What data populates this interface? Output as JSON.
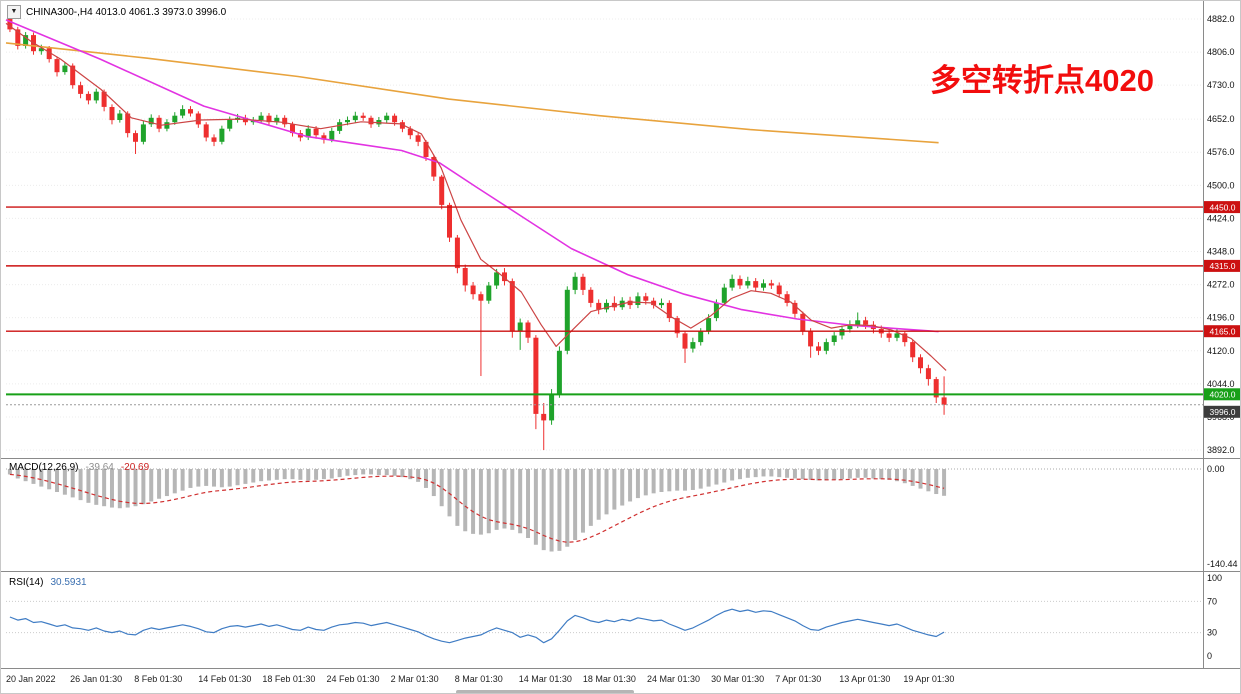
{
  "window": {
    "symbol_dropdown_icon": "▼",
    "title": "CHINA300-,H4 4013.0 4061.3 3973.0 3996.0"
  },
  "annotation": {
    "text": "多空转折点4020",
    "color": "#f20d0d"
  },
  "indicator_labels": {
    "macd_name": "MACD(12,26,9)",
    "macd_value": "-39.64",
    "macd_signal": "-20.69",
    "rsi_name": "RSI(14)",
    "rsi_value": "30.5931"
  },
  "chart_data": {
    "type": "candlestick",
    "symbol": "CHINA300-",
    "timeframe": "H4",
    "quote": {
      "open": 4013.0,
      "high": 4061.3,
      "low": 3973.0,
      "close": 3996.0
    },
    "up_color": "#1fa32b",
    "down_color": "#ee2f2f",
    "y_axis_ticks": [
      "4882.0",
      "4806.0",
      "4730.0",
      "4652.0",
      "4576.0",
      "4500.0",
      "4424.0",
      "4348.0",
      "4272.0",
      "4196.0",
      "4120.0",
      "4044.0",
      "3968.0",
      "3892.0"
    ],
    "x_axis_labels": [
      "20 Jan 2022",
      "26 Jan 01:30",
      "8 Feb 01:30",
      "14 Feb 01:30",
      "18 Feb 01:30",
      "24 Feb 01:30",
      "2 Mar 01:30",
      "8 Mar 01:30",
      "14 Mar 01:30",
      "18 Mar 01:30",
      "24 Mar 01:30",
      "30 Mar 01:30",
      "7 Apr 01:30",
      "13 Apr 01:30",
      "19 Apr 01:30"
    ],
    "candles": [
      [
        4882,
        4890,
        4852,
        4858
      ],
      [
        4858,
        4864,
        4812,
        4820
      ],
      [
        4820,
        4852,
        4814,
        4845
      ],
      [
        4845,
        4851,
        4800,
        4808
      ],
      [
        4808,
        4823,
        4800,
        4815
      ],
      [
        4815,
        4820,
        4782,
        4790
      ],
      [
        4790,
        4796,
        4750,
        4760
      ],
      [
        4760,
        4783,
        4754,
        4775
      ],
      [
        4775,
        4780,
        4722,
        4730
      ],
      [
        4730,
        4738,
        4700,
        4710
      ],
      [
        4710,
        4716,
        4686,
        4695
      ],
      [
        4695,
        4722,
        4688,
        4715
      ],
      [
        4715,
        4720,
        4670,
        4680
      ],
      [
        4680,
        4686,
        4640,
        4650
      ],
      [
        4650,
        4673,
        4644,
        4665
      ],
      [
        4665,
        4670,
        4610,
        4620
      ],
      [
        4620,
        4626,
        4572,
        4600
      ],
      [
        4600,
        4648,
        4594,
        4640
      ],
      [
        4640,
        4663,
        4634,
        4655
      ],
      [
        4655,
        4661,
        4622,
        4630
      ],
      [
        4630,
        4652,
        4624,
        4645
      ],
      [
        4645,
        4668,
        4639,
        4660
      ],
      [
        4660,
        4684,
        4654,
        4675
      ],
      [
        4675,
        4682,
        4658,
        4665
      ],
      [
        4665,
        4670,
        4632,
        4640
      ],
      [
        4640,
        4645,
        4601,
        4610
      ],
      [
        4610,
        4617,
        4590,
        4600
      ],
      [
        4600,
        4637,
        4594,
        4630
      ],
      [
        4630,
        4658,
        4624,
        4650
      ],
      [
        4650,
        4664,
        4644,
        4655
      ],
      [
        4655,
        4662,
        4638,
        4645
      ],
      [
        4645,
        4657,
        4639,
        4650
      ],
      [
        4650,
        4668,
        4644,
        4660
      ],
      [
        4660,
        4666,
        4638,
        4645
      ],
      [
        4645,
        4662,
        4639,
        4655
      ],
      [
        4655,
        4661,
        4633,
        4640
      ],
      [
        4640,
        4646,
        4612,
        4620
      ],
      [
        4620,
        4627,
        4601,
        4610
      ],
      [
        4610,
        4638,
        4604,
        4630
      ],
      [
        4630,
        4636,
        4607,
        4615
      ],
      [
        4615,
        4621,
        4596,
        4605
      ],
      [
        4605,
        4632,
        4599,
        4625
      ],
      [
        4625,
        4652,
        4618,
        4645
      ],
      [
        4645,
        4658,
        4638,
        4650
      ],
      [
        4650,
        4669,
        4644,
        4660
      ],
      [
        4660,
        4667,
        4648,
        4655
      ],
      [
        4655,
        4660,
        4632,
        4640
      ],
      [
        4640,
        4657,
        4634,
        4650
      ],
      [
        4650,
        4667,
        4643,
        4660
      ],
      [
        4660,
        4665,
        4637,
        4645
      ],
      [
        4645,
        4650,
        4622,
        4630
      ],
      [
        4630,
        4636,
        4606,
        4615
      ],
      [
        4615,
        4620,
        4590,
        4600
      ],
      [
        4600,
        4604,
        4556,
        4565
      ],
      [
        4565,
        4570,
        4510,
        4520
      ],
      [
        4520,
        4524,
        4445,
        4455
      ],
      [
        4455,
        4460,
        4370,
        4380
      ],
      [
        4380,
        4386,
        4298,
        4310
      ],
      [
        4310,
        4318,
        4256,
        4270
      ],
      [
        4270,
        4278,
        4238,
        4250
      ],
      [
        4250,
        4256,
        4062,
        4235
      ],
      [
        4235,
        4278,
        4228,
        4270
      ],
      [
        4270,
        4308,
        4262,
        4300
      ],
      [
        4300,
        4310,
        4270,
        4280
      ],
      [
        4280,
        4286,
        4150,
        4165
      ],
      [
        4165,
        4194,
        4122,
        4185
      ],
      [
        4185,
        4190,
        4138,
        4150
      ],
      [
        4150,
        4156,
        3940,
        3975
      ],
      [
        3975,
        4000,
        3892,
        3960
      ],
      [
        3960,
        4032,
        3950,
        4020
      ],
      [
        4020,
        4130,
        4012,
        4120
      ],
      [
        4120,
        4268,
        4112,
        4260
      ],
      [
        4260,
        4300,
        4250,
        4290
      ],
      [
        4290,
        4297,
        4248,
        4260
      ],
      [
        4260,
        4266,
        4220,
        4230
      ],
      [
        4230,
        4238,
        4204,
        4215
      ],
      [
        4215,
        4238,
        4208,
        4230
      ],
      [
        4230,
        4245,
        4212,
        4220
      ],
      [
        4220,
        4243,
        4214,
        4235
      ],
      [
        4235,
        4244,
        4216,
        4225
      ],
      [
        4225,
        4254,
        4218,
        4245
      ],
      [
        4245,
        4253,
        4226,
        4235
      ],
      [
        4235,
        4242,
        4217,
        4225
      ],
      [
        4225,
        4240,
        4218,
        4230
      ],
      [
        4230,
        4236,
        4186,
        4195
      ],
      [
        4195,
        4200,
        4150,
        4160
      ],
      [
        4160,
        4166,
        4092,
        4125
      ],
      [
        4125,
        4150,
        4116,
        4140
      ],
      [
        4140,
        4172,
        4132,
        4165
      ],
      [
        4165,
        4204,
        4158,
        4195
      ],
      [
        4195,
        4238,
        4188,
        4230
      ],
      [
        4230,
        4274,
        4224,
        4265
      ],
      [
        4265,
        4295,
        4258,
        4285
      ],
      [
        4285,
        4293,
        4262,
        4270
      ],
      [
        4270,
        4290,
        4263,
        4280
      ],
      [
        4280,
        4287,
        4257,
        4265
      ],
      [
        4265,
        4284,
        4258,
        4275
      ],
      [
        4275,
        4283,
        4262,
        4270
      ],
      [
        4270,
        4277,
        4242,
        4250
      ],
      [
        4250,
        4257,
        4222,
        4230
      ],
      [
        4230,
        4236,
        4196,
        4205
      ],
      [
        4205,
        4210,
        4156,
        4165
      ],
      [
        4165,
        4172,
        4104,
        4130
      ],
      [
        4130,
        4140,
        4110,
        4120
      ],
      [
        4120,
        4148,
        4112,
        4140
      ],
      [
        4140,
        4163,
        4132,
        4155
      ],
      [
        4155,
        4178,
        4146,
        4170
      ],
      [
        4170,
        4190,
        4162,
        4180
      ],
      [
        4180,
        4208,
        4172,
        4190
      ],
      [
        4190,
        4198,
        4170,
        4180
      ],
      [
        4180,
        4188,
        4160,
        4170
      ],
      [
        4170,
        4178,
        4150,
        4160
      ],
      [
        4160,
        4168,
        4140,
        4150
      ],
      [
        4150,
        4170,
        4142,
        4160
      ],
      [
        4160,
        4166,
        4130,
        4140
      ],
      [
        4140,
        4146,
        4094,
        4105
      ],
      [
        4105,
        4112,
        4068,
        4080
      ],
      [
        4080,
        4088,
        4040,
        4055
      ],
      [
        4055,
        4060,
        4000,
        4013
      ],
      [
        4013,
        4061.3,
        3973,
        3996
      ]
    ],
    "moving_averages": [
      {
        "name": "slow-ma",
        "color": "#e8a33d",
        "width": 1.6,
        "points": [
          [
            0,
            4827
          ],
          [
            0.15,
            4792
          ],
          [
            0.31,
            4750
          ],
          [
            0.47,
            4698
          ],
          [
            0.63,
            4660
          ],
          [
            0.79,
            4628
          ],
          [
            0.99,
            4598
          ]
        ]
      },
      {
        "name": "mid-ma",
        "color": "#e233e2",
        "width": 1.6,
        "points": [
          [
            0,
            4880
          ],
          [
            0.1,
            4790
          ],
          [
            0.21,
            4682
          ],
          [
            0.32,
            4612
          ],
          [
            0.42,
            4580
          ],
          [
            0.46,
            4552
          ],
          [
            0.5,
            4495
          ],
          [
            0.55,
            4425
          ],
          [
            0.6,
            4355
          ],
          [
            0.66,
            4295
          ],
          [
            0.72,
            4250
          ],
          [
            0.78,
            4215
          ],
          [
            0.84,
            4193
          ],
          [
            0.9,
            4178
          ],
          [
            0.99,
            4164
          ]
        ]
      },
      {
        "name": "fast-ma",
        "color": "#cc4444",
        "width": 1.2,
        "points": [
          [
            0,
            4872
          ],
          [
            0.027,
            4830
          ],
          [
            0.058,
            4790
          ],
          [
            0.101,
            4720
          ],
          [
            0.133,
            4655
          ],
          [
            0.165,
            4638
          ],
          [
            0.207,
            4650
          ],
          [
            0.249,
            4652
          ],
          [
            0.292,
            4645
          ],
          [
            0.334,
            4630
          ],
          [
            0.377,
            4646
          ],
          [
            0.419,
            4641
          ],
          [
            0.441,
            4618
          ],
          [
            0.462,
            4540
          ],
          [
            0.483,
            4420
          ],
          [
            0.504,
            4330
          ],
          [
            0.525,
            4295
          ],
          [
            0.547,
            4255
          ],
          [
            0.568,
            4180
          ],
          [
            0.584,
            4130
          ],
          [
            0.6,
            4165
          ],
          [
            0.621,
            4210
          ],
          [
            0.642,
            4222
          ],
          [
            0.663,
            4232
          ],
          [
            0.685,
            4230
          ],
          [
            0.706,
            4198
          ],
          [
            0.727,
            4172
          ],
          [
            0.748,
            4200
          ],
          [
            0.77,
            4240
          ],
          [
            0.791,
            4258
          ],
          [
            0.812,
            4252
          ],
          [
            0.833,
            4232
          ],
          [
            0.855,
            4190
          ],
          [
            0.876,
            4172
          ],
          [
            0.897,
            4180
          ],
          [
            0.918,
            4178
          ],
          [
            0.94,
            4168
          ],
          [
            0.961,
            4148
          ],
          [
            0.982,
            4108
          ],
          [
            0.998,
            4075
          ]
        ]
      }
    ],
    "horizontal_lines": [
      {
        "price": 4450.0,
        "label": "4450.0",
        "color": "#cc1111",
        "width": 1.4
      },
      {
        "price": 4315.0,
        "label": "4315.0",
        "color": "#cc1111",
        "width": 1.4
      },
      {
        "price": 4165.0,
        "label": "4165.0",
        "color": "#cc1111",
        "width": 1.4
      },
      {
        "price": 4020.0,
        "label": "4020.0",
        "color": "#18a018",
        "width": 2
      }
    ],
    "current_price": {
      "value": 3996.0,
      "label": "3996.0",
      "tag_color": "#3c3c3c",
      "line_color": "#9a9a9a"
    },
    "indicators": {
      "macd": {
        "histogram_color": "#b6b6b6",
        "signal_color": "#d03030",
        "scale_labels": {
          "zero": "0.00",
          "min": "-140.44"
        },
        "current": {
          "macd": -39.64,
          "signal": -20.69
        },
        "values": [
          -8,
          -14,
          -18,
          -22,
          -26,
          -30,
          -34,
          -38,
          -42,
          -46,
          -50,
          -53,
          -55,
          -57,
          -58,
          -57,
          -55,
          -52,
          -48,
          -44,
          -40,
          -36,
          -32,
          -28,
          -26,
          -25,
          -26,
          -27,
          -26,
          -24,
          -22,
          -20,
          -18,
          -17,
          -16,
          -15,
          -15,
          -16,
          -17,
          -16,
          -15,
          -14,
          -12,
          -10,
          -9,
          -8,
          -8,
          -9,
          -9,
          -10,
          -12,
          -15,
          -19,
          -28,
          -40,
          -55,
          -70,
          -84,
          -92,
          -96,
          -97,
          -95,
          -90,
          -88,
          -90,
          -95,
          -102,
          -112,
          -120,
          -122,
          -121,
          -115,
          -105,
          -94,
          -84,
          -75,
          -67,
          -60,
          -54,
          -48,
          -43,
          -39,
          -36,
          -34,
          -33,
          -32,
          -32,
          -31,
          -29,
          -26,
          -23,
          -20,
          -17,
          -15,
          -13,
          -12,
          -11,
          -11,
          -12,
          -13,
          -14,
          -15,
          -16,
          -17,
          -17,
          -16,
          -15,
          -14,
          -13,
          -13,
          -14,
          -15,
          -16,
          -18,
          -21,
          -25,
          -29,
          -33,
          -37,
          -39.64
        ]
      },
      "rsi": {
        "line_color": "#3f7cc4",
        "levels": [
          "100",
          "70",
          "30",
          "0"
        ],
        "current": 30.5931,
        "values": [
          50,
          46,
          48,
          43,
          44,
          41,
          38,
          40,
          36,
          35,
          33,
          36,
          32,
          30,
          32,
          28,
          27,
          33,
          36,
          34,
          36,
          38,
          40,
          38,
          35,
          31,
          30,
          35,
          38,
          39,
          37,
          39,
          41,
          38,
          40,
          37,
          34,
          33,
          37,
          34,
          33,
          37,
          40,
          41,
          43,
          42,
          39,
          41,
          43,
          40,
          37,
          34,
          31,
          26,
          22,
          19,
          17,
          20,
          23,
          25,
          27,
          32,
          36,
          33,
          30,
          24,
          27,
          24,
          17,
          22,
          33,
          45,
          52,
          49,
          45,
          43,
          46,
          44,
          47,
          45,
          49,
          47,
          45,
          46,
          41,
          37,
          33,
          36,
          41,
          46,
          52,
          57,
          60,
          57,
          59,
          56,
          58,
          57,
          53,
          49,
          45,
          39,
          34,
          33,
          37,
          40,
          43,
          45,
          47,
          45,
          43,
          41,
          39,
          41,
          37,
          33,
          30,
          27,
          25,
          30.59
        ]
      }
    }
  }
}
